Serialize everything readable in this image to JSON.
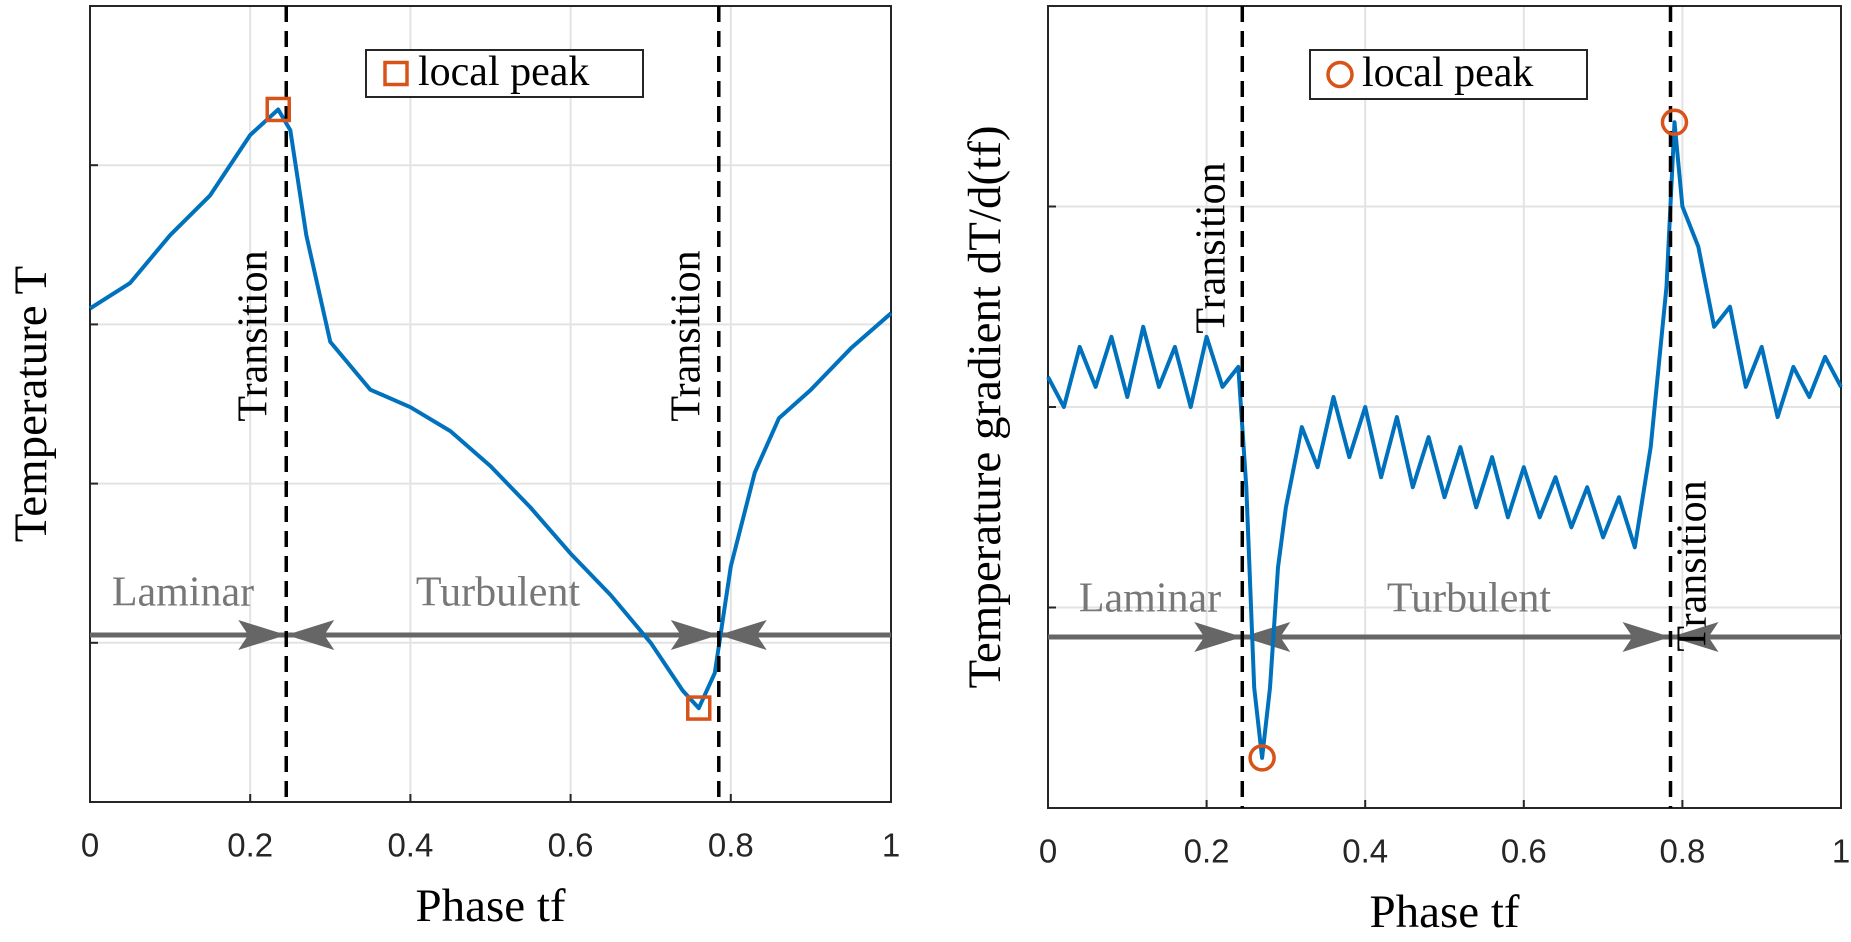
{
  "chart_data": [
    {
      "type": "line",
      "xlabel": "Phase tf",
      "ylabel": "Temperature T",
      "xlim": [
        0,
        1
      ],
      "xticks": [
        0,
        0.2,
        0.4,
        0.6,
        0.8,
        1
      ],
      "ylim": [
        0,
        5
      ],
      "yticks": [
        1,
        2,
        3,
        4
      ],
      "grid": true,
      "x": [
        0,
        0.05,
        0.1,
        0.15,
        0.2,
        0.235,
        0.25,
        0.27,
        0.3,
        0.35,
        0.4,
        0.45,
        0.5,
        0.55,
        0.6,
        0.65,
        0.7,
        0.74,
        0.76,
        0.78,
        0.8,
        0.83,
        0.86,
        0.9,
        0.95,
        1
      ],
      "series": [
        {
          "color": "#0072bd",
          "values": [
            3.1,
            3.26,
            3.56,
            3.81,
            4.19,
            4.35,
            4.22,
            3.56,
            2.89,
            2.59,
            2.48,
            2.33,
            2.11,
            1.85,
            1.56,
            1.3,
            1.0,
            0.7,
            0.59,
            0.81,
            1.48,
            2.07,
            2.41,
            2.59,
            2.85,
            3.07
          ]
        }
      ],
      "peaks": {
        "name": "local peak",
        "marker": "square",
        "color": "#d95319",
        "x": [
          0.235,
          0.76
        ],
        "y": [
          4.35,
          0.59
        ]
      },
      "vlines": [
        0.245,
        0.785
      ],
      "annotations": [
        "Transition",
        "Transition",
        "Laminar",
        "Turbulent"
      ],
      "legend_loc": "top center"
    },
    {
      "type": "line",
      "xlabel": "Phase tf",
      "ylabel": "Temperature gradient dT/d(tf)",
      "xlim": [
        0,
        1
      ],
      "xticks": [
        0,
        0.2,
        0.4,
        0.6,
        0.8,
        1
      ],
      "ylim": [
        0,
        4
      ],
      "yticks": [
        1,
        2,
        3
      ],
      "grid": true,
      "x": [
        0,
        0.02,
        0.04,
        0.06,
        0.08,
        0.1,
        0.12,
        0.14,
        0.16,
        0.18,
        0.2,
        0.22,
        0.24,
        0.25,
        0.26,
        0.27,
        0.28,
        0.29,
        0.3,
        0.32,
        0.34,
        0.36,
        0.38,
        0.4,
        0.42,
        0.44,
        0.46,
        0.48,
        0.5,
        0.52,
        0.54,
        0.56,
        0.58,
        0.6,
        0.62,
        0.64,
        0.66,
        0.68,
        0.7,
        0.72,
        0.74,
        0.76,
        0.78,
        0.79,
        0.8,
        0.82,
        0.84,
        0.86,
        0.88,
        0.9,
        0.92,
        0.94,
        0.96,
        0.98,
        1
      ],
      "series": [
        {
          "color": "#0072bd",
          "values": [
            2.15,
            2.0,
            2.3,
            2.1,
            2.35,
            2.05,
            2.4,
            2.1,
            2.3,
            2.0,
            2.35,
            2.1,
            2.2,
            1.6,
            0.6,
            0.25,
            0.6,
            1.2,
            1.5,
            1.9,
            1.7,
            2.05,
            1.75,
            2.0,
            1.65,
            1.95,
            1.6,
            1.85,
            1.55,
            1.8,
            1.5,
            1.75,
            1.45,
            1.7,
            1.45,
            1.65,
            1.4,
            1.6,
            1.35,
            1.55,
            1.3,
            1.8,
            2.6,
            3.42,
            3.0,
            2.8,
            2.4,
            2.5,
            2.1,
            2.3,
            1.95,
            2.2,
            2.05,
            2.25,
            2.1
          ]
        }
      ],
      "peaks": {
        "name": "local peak",
        "marker": "circle",
        "color": "#d95319",
        "x": [
          0.27,
          0.79
        ],
        "y": [
          0.25,
          3.42
        ]
      },
      "vlines": [
        0.245,
        0.785
      ],
      "annotations": [
        "Transition",
        "Transition",
        "Laminar",
        "Turbulent"
      ],
      "legend_loc": "top center"
    }
  ]
}
